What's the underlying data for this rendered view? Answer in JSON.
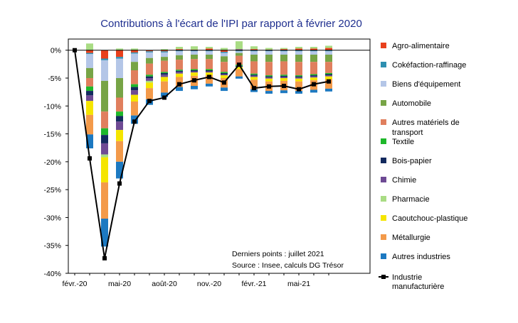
{
  "chart_data": {
    "type": "bar",
    "title": "Contributions à l'écart de l'IPI par rapport à février 2020",
    "xlabel": "",
    "ylabel": "",
    "ylim": [
      -40,
      2
    ],
    "yticks": [
      0,
      -5,
      -10,
      -15,
      -20,
      -25,
      -30,
      -35,
      -40
    ],
    "ytick_labels": [
      "0%",
      "-5%",
      "-10%",
      "-15%",
      "-20%",
      "-25%",
      "-30%",
      "-35%",
      "-40%"
    ],
    "categories": [
      "févr.-20",
      "mars-20",
      "avr.-20",
      "mai-20",
      "juin-20",
      "juil.-20",
      "août-20",
      "sept.-20",
      "oct.-20",
      "nov.-20",
      "déc.-20",
      "janv.-21",
      "févr.-21",
      "mars-21",
      "avr.-21",
      "mai-21",
      "juin-21",
      "juil.-21"
    ],
    "xtick_labels": [
      "févr.-20",
      "mai-20",
      "août-20",
      "nov.-20",
      "févr.-21",
      "mai-21"
    ],
    "xtick_indices": [
      0,
      3,
      6,
      9,
      12,
      15
    ],
    "series": [
      {
        "name": "Agro-alimentaire",
        "color": "#e8401c",
        "values": [
          0,
          -0.5,
          -1.5,
          -1.2,
          -0.4,
          -0.2,
          -0.2,
          0.2,
          0.1,
          0.3,
          -0.3,
          0.1,
          0.2,
          0.1,
          0.2,
          0.3,
          0.3,
          0.4
        ]
      },
      {
        "name": "Cokéfaction-raffinage",
        "color": "#2e8fb0",
        "values": [
          0,
          -0.2,
          -0.3,
          -0.3,
          -0.2,
          -0.2,
          -0.2,
          -0.2,
          -0.2,
          -0.2,
          -0.2,
          -0.2,
          -0.2,
          -0.2,
          -0.2,
          -0.2,
          -0.2,
          -0.2
        ]
      },
      {
        "name": "Biens d'équipement",
        "color": "#b4c6e7",
        "values": [
          0,
          -2.5,
          -3.7,
          -3.5,
          -1.5,
          -1.0,
          -0.8,
          -0.7,
          -0.6,
          -0.6,
          -0.6,
          -0.3,
          -0.6,
          -0.6,
          -0.6,
          -0.6,
          -0.6,
          -0.6
        ]
      },
      {
        "name": "Automobile",
        "color": "#77a446",
        "values": [
          0,
          -1.8,
          -5.5,
          -3.5,
          -1.5,
          -1.0,
          -0.7,
          -0.8,
          -0.8,
          -0.8,
          -1.0,
          -0.5,
          -1.2,
          -1.3,
          -1.2,
          -1.3,
          -1.3,
          -1.3
        ]
      },
      {
        "name": "Autres matériels de transport",
        "color": "#e07f5e",
        "values": [
          0,
          -1.5,
          -3.0,
          -2.5,
          -2.5,
          -2.0,
          -2.0,
          -1.8,
          -1.8,
          -1.8,
          -1.8,
          -1.6,
          -2.2,
          -2.4,
          -2.4,
          -2.4,
          -2.2,
          -2.0
        ]
      },
      {
        "name": "Textile",
        "color": "#1eb82a",
        "values": [
          0,
          -0.8,
          -1.2,
          -0.8,
          -0.5,
          -0.3,
          -0.2,
          -0.2,
          -0.2,
          -0.2,
          -0.2,
          -0.2,
          -0.2,
          -0.2,
          -0.2,
          -0.2,
          -0.2,
          -0.2
        ]
      },
      {
        "name": "Bois-papier",
        "color": "#132a5e",
        "values": [
          0,
          -0.8,
          -1.5,
          -1.0,
          -0.6,
          -0.3,
          -0.3,
          -0.2,
          -0.2,
          -0.2,
          -0.2,
          -0.2,
          -0.2,
          -0.2,
          -0.2,
          -0.2,
          -0.2,
          -0.2
        ]
      },
      {
        "name": "Chimie",
        "color": "#6e4a94",
        "values": [
          0,
          -1.0,
          -2.0,
          -1.5,
          -0.8,
          -0.5,
          -0.4,
          -0.3,
          -0.2,
          -0.2,
          -0.2,
          0.1,
          -0.2,
          -0.2,
          -0.2,
          -0.2,
          -0.2,
          -0.2
        ]
      },
      {
        "name": "Pharmacie",
        "color": "#a9dc84",
        "values": [
          0,
          1.2,
          -0.5,
          0.3,
          0.3,
          -0.3,
          0.2,
          0.4,
          0.6,
          0.3,
          0.4,
          1.4,
          0.5,
          0.3,
          0.2,
          0.3,
          0.3,
          0.4
        ]
      },
      {
        "name": "Caoutchouc-plastique",
        "color": "#f5e500",
        "values": [
          0,
          -2.5,
          -4.5,
          -2.0,
          -1.2,
          -1.0,
          -0.8,
          -0.6,
          -0.6,
          -0.5,
          -0.5,
          -0.4,
          -0.5,
          -0.5,
          -0.5,
          -0.5,
          -0.5,
          -0.5
        ]
      },
      {
        "name": "Métallurgie",
        "color": "#f39a4a",
        "values": [
          0,
          -3.5,
          -6.5,
          -3.7,
          -2.5,
          -2.0,
          -2.0,
          -1.8,
          -1.8,
          -1.5,
          -1.7,
          -1.3,
          -1.7,
          -1.7,
          -1.7,
          -1.7,
          -1.7,
          -1.7
        ]
      },
      {
        "name": "Autres industries",
        "color": "#1c79c1",
        "values": [
          0,
          -2.5,
          -5.0,
          -3.0,
          -1.5,
          -1.0,
          -0.8,
          -0.7,
          -0.6,
          -0.5,
          -0.6,
          -0.4,
          -0.5,
          -0.5,
          -0.5,
          -0.5,
          -0.5,
          -0.5
        ]
      }
    ],
    "line": {
      "name": "Industrie manufacturière",
      "color": "#000000",
      "values": [
        0,
        -19.4,
        -37.3,
        -23.9,
        -12.8,
        -9.1,
        -8.5,
        -6.1,
        -5.4,
        -4.8,
        -5.8,
        -2.6,
        -6.8,
        -6.5,
        -6.4,
        -7.0,
        -6.1,
        -5.6
      ]
    },
    "annotations": [
      "Derniers points : juillet 2021",
      "Source : Insee, calculs DG Trésor"
    ],
    "legend_position": "right",
    "grid": false
  }
}
